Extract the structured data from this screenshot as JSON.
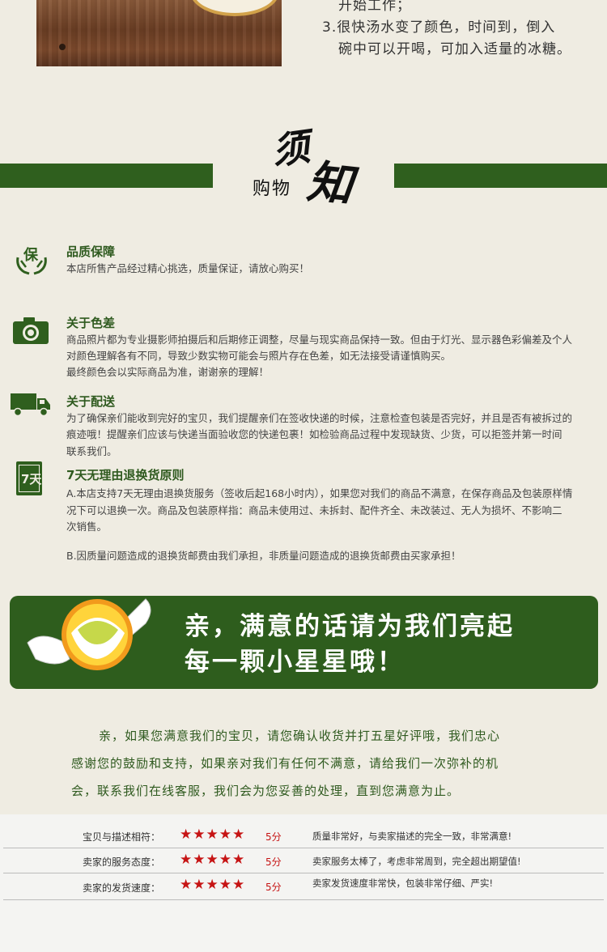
{
  "steps": {
    "line_a": "开始工作；",
    "line_b": "3.很快汤水变了颜色，时间到，倒入",
    "line_c": "碗中可以开喝，可加入适量的冰糖。"
  },
  "header": {
    "char_xu": "须",
    "char_zhi": "知",
    "sub": "购物"
  },
  "sections": [
    {
      "title": "品质保障",
      "icon_text": "保",
      "lines": [
        "本店所售产品经过精心挑选，质量保证，请放心购买！"
      ]
    },
    {
      "title": "关于色差",
      "lines": [
        "商品照片都为专业摄影师拍摄后和后期修正调整，尽量与现实商品保持一致。但由于灯光、显示器色彩偏差及个人",
        "对颜色理解各有不同，导致少数实物可能会与照片存在色差，如无法接受请谨慎购买。",
        "最终颜色会以实际商品为准，谢谢亲的理解！"
      ]
    },
    {
      "title": "关于配送",
      "lines": [
        "为了确保亲们能收到完好的宝贝，我们提醒亲们在签收快递的时候，注意检查包装是否完好，并且是否有被拆过的",
        "痕迹哦！提醒亲们应该与快递当面验收您的快递包裹！如检验商品过程中发现缺货、少货，可以拒签并第一时间",
        "联系我们。"
      ]
    },
    {
      "title": "7天无理由退换货原则",
      "icon_text": "7天",
      "lines": [
        "A.本店支持7天无理由退换货服务（签收后起168小时内），如果您对我们的商品不满意，在保存商品及包装原样情",
        "况下可以退换一次。商品及包装原样指：商品未使用过、未拆封、配件齐全、未改装过、无人为损坏、不影响二",
        "次销售。"
      ],
      "extra": "B.因质量问题造成的退换货邮费由我们承担，非质量问题造成的退换货邮费由买家承担！"
    }
  ],
  "banner": {
    "line1": "亲，满意的话请为我们亮起",
    "line2": "每一颗小星星哦！"
  },
  "message": {
    "line1": "亲，如果您满意我们的宝贝，请您确认收货并打五星好评哦，我们忠心",
    "line2": "感谢您的鼓励和支持，如果亲对我们有任何不满意，请给我们一次弥补的机",
    "line3": "会，联系我们在线客服，我们会为您妥善的处理，直到您满意为止。"
  },
  "ratings": [
    {
      "label": "宝贝与描述相符：",
      "stars": "★★★★★",
      "score": "5分",
      "desc": "质量非常好，与卖家描述的完全一致，非常满意!"
    },
    {
      "label": "卖家的服务态度：",
      "stars": "★★★★★",
      "score": "5分",
      "desc": "卖家服务太棒了，考虑非常周到，完全超出期望值!"
    },
    {
      "label": "卖家的发货速度：",
      "stars": "★★★★★",
      "score": "5分",
      "desc": "卖家发货速度非常快，包装非常仔细、严实!"
    }
  ],
  "colors": {
    "accent_green": "#2f5f1e",
    "star_red": "#c61414"
  }
}
